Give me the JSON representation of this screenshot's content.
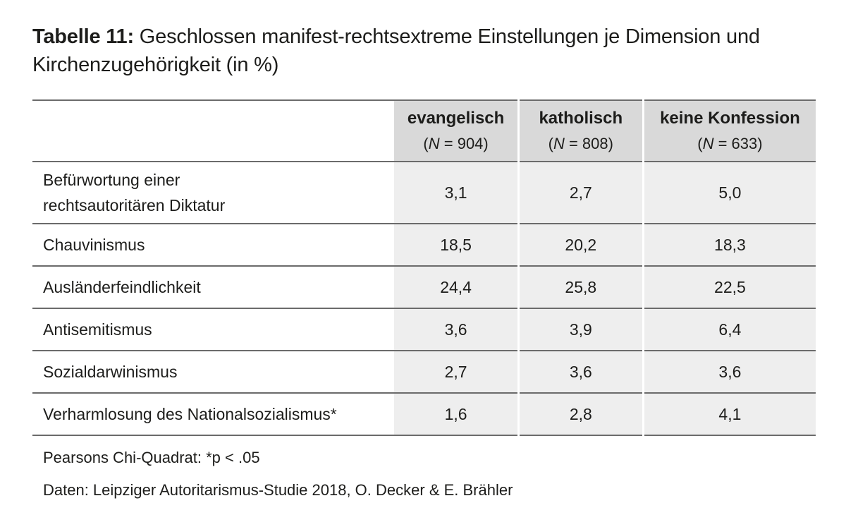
{
  "title": {
    "label": "Tabelle 11:",
    "text": " Geschlossen manifest-rechtsextreme Einstellungen je Dimension und Kirchenzugehörigkeit (in %)"
  },
  "table": {
    "columns": [
      {
        "name": "evangelisch",
        "n_prefix": "(",
        "n_var": "N",
        "n_suffix": " = 904)"
      },
      {
        "name": "katholisch",
        "n_prefix": "(",
        "n_var": "N",
        "n_suffix": " = 808)"
      },
      {
        "name": "keine Konfession",
        "n_prefix": "(",
        "n_var": "N",
        "n_suffix": " = 633)"
      }
    ],
    "rows": [
      {
        "label_line1": "Befürwortung einer",
        "label_line2": "rechtsautoritären Diktatur",
        "values": [
          "3,1",
          "2,7",
          "5,0"
        ]
      },
      {
        "label": "Chauvinismus",
        "values": [
          "18,5",
          "20,2",
          "18,3"
        ]
      },
      {
        "label": "Ausländerfeindlichkeit",
        "values": [
          "24,4",
          "25,8",
          "22,5"
        ]
      },
      {
        "label": "Antisemitismus",
        "values": [
          "3,6",
          "3,9",
          "6,4"
        ]
      },
      {
        "label": "Sozialdarwinismus",
        "values": [
          "2,7",
          "3,6",
          "3,6"
        ]
      },
      {
        "label": "Verharmlosung des Nationalsozialismus*",
        "values": [
          "1,6",
          "2,8",
          "4,1"
        ]
      }
    ]
  },
  "notes": {
    "stat": "Pearsons Chi-Quadrat: *p < .05",
    "source": "Daten: Leipziger Autoritarismus-Studie 2018, O. Decker & E. Brähler"
  },
  "colors": {
    "header_bg": "#d9d9d9",
    "cell_bg": "#eeeeee",
    "rule": "#6b6b6b",
    "text": "#1d1d1b"
  }
}
